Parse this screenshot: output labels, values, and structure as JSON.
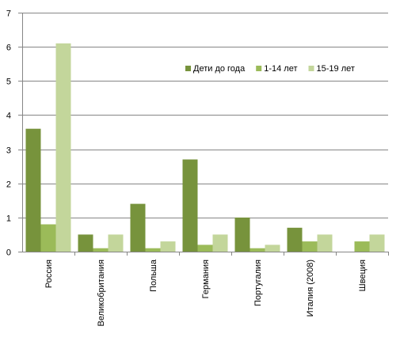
{
  "chart_data": {
    "type": "bar",
    "categories": [
      "Россия",
      "Великобритания",
      "Польша",
      "Германия",
      "Португалия",
      "Италия (2008)",
      "Швеция"
    ],
    "series": [
      {
        "name": "Дети до года",
        "color": "#77933C",
        "values": [
          3.6,
          0.5,
          1.4,
          2.7,
          1.0,
          0.7,
          null
        ]
      },
      {
        "name": "1-14 лет",
        "color": "#9BBB59",
        "values": [
          0.8,
          0.1,
          0.1,
          0.2,
          0.1,
          0.3,
          0.3
        ]
      },
      {
        "name": "15-19 лет",
        "color": "#C3D69B",
        "values": [
          6.1,
          0.5,
          0.3,
          0.5,
          0.2,
          0.5,
          0.5
        ]
      }
    ],
    "ylim": [
      0,
      7
    ],
    "yticks": [
      "0",
      "1",
      "2",
      "3",
      "4",
      "5",
      "6",
      "7"
    ],
    "grid": true,
    "legend_position": "top-right"
  }
}
